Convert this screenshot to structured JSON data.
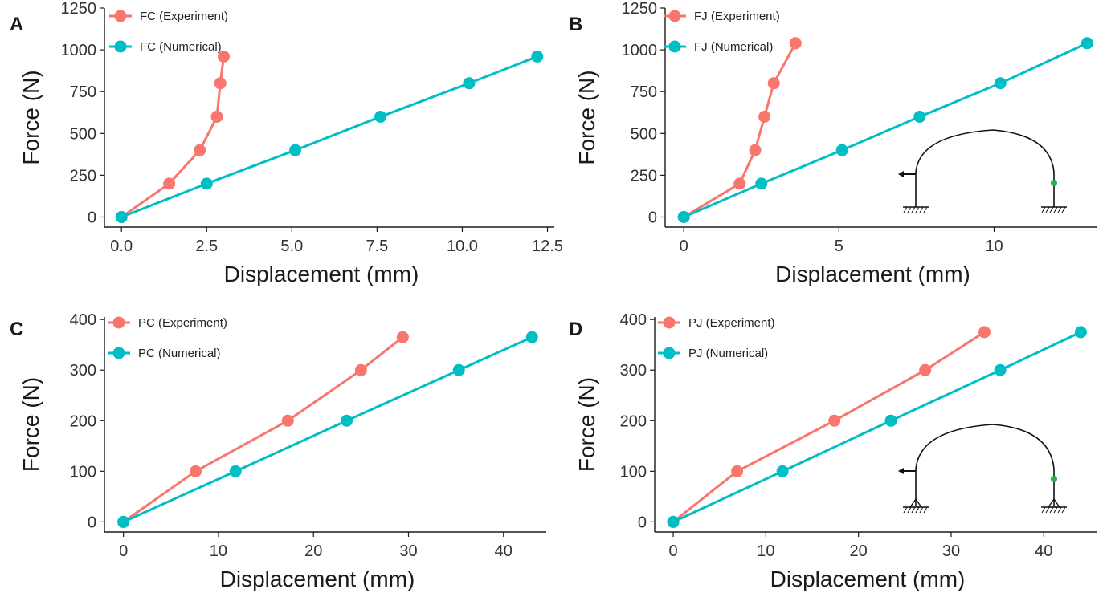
{
  "colors": {
    "experiment": "#F8766D",
    "numerical": "#00BFC4",
    "axis": "#1a1a1a",
    "joint_marker": "#22B14C"
  },
  "chart_data": [
    {
      "panel": "A",
      "type": "line",
      "xlabel": "Displacement (mm)",
      "ylabel": "Force (N)",
      "xlim": [
        -0.5,
        12.7
      ],
      "ylim": [
        -60,
        1250
      ],
      "xticks": [
        0.0,
        2.5,
        5.0,
        7.5,
        10.0,
        12.5
      ],
      "xtick_labels": [
        "0.0",
        "2.5",
        "5.0",
        "7.5",
        "10.0",
        "12.5"
      ],
      "yticks": [
        0,
        250,
        500,
        750,
        1000,
        1250
      ],
      "ytick_labels": [
        "0",
        "250",
        "500",
        "750",
        "1000",
        "1250"
      ],
      "legend": "top-left",
      "grid": false,
      "inset": "none",
      "series": [
        {
          "name": "FC (Experiment)",
          "color": "#F8766D",
          "x": [
            0.0,
            1.4,
            2.3,
            2.8,
            2.9,
            3.0
          ],
          "y": [
            0,
            200,
            400,
            600,
            800,
            960
          ]
        },
        {
          "name": "FC (Numerical)",
          "color": "#00BFC4",
          "x": [
            0.0,
            2.5,
            5.1,
            7.6,
            10.2,
            12.2
          ],
          "y": [
            0,
            200,
            400,
            600,
            800,
            960
          ]
        }
      ]
    },
    {
      "panel": "B",
      "type": "line",
      "xlabel": "Displacement (mm)",
      "ylabel": "Force (N)",
      "xlim": [
        -0.6,
        13.3
      ],
      "ylim": [
        -60,
        1250
      ],
      "xticks": [
        0,
        5,
        10
      ],
      "xtick_labels": [
        "0",
        "5",
        "10"
      ],
      "yticks": [
        0,
        250,
        500,
        750,
        1000,
        1250
      ],
      "ytick_labels": [
        "0",
        "250",
        "500",
        "750",
        "1000",
        "1250"
      ],
      "legend": "top-left",
      "grid": false,
      "inset": "fixed supports",
      "series": [
        {
          "name": "FJ (Experiment)",
          "color": "#F8766D",
          "x": [
            0.0,
            1.8,
            2.3,
            2.6,
            2.9,
            3.6
          ],
          "y": [
            0,
            200,
            400,
            600,
            800,
            1040
          ]
        },
        {
          "name": "FJ (Numerical)",
          "color": "#00BFC4",
          "x": [
            0.0,
            2.5,
            5.1,
            7.6,
            10.2,
            13.0
          ],
          "y": [
            0,
            200,
            400,
            600,
            800,
            1040
          ]
        }
      ]
    },
    {
      "panel": "C",
      "type": "line",
      "xlabel": "Displacement (mm)",
      "ylabel": "Force (N)",
      "xlim": [
        -2,
        44.5
      ],
      "ylim": [
        -20,
        405
      ],
      "xticks": [
        0,
        10,
        20,
        30,
        40
      ],
      "xtick_labels": [
        "0",
        "10",
        "20",
        "30",
        "40"
      ],
      "yticks": [
        0,
        100,
        200,
        300,
        400
      ],
      "ytick_labels": [
        "0",
        "100",
        "200",
        "300",
        "400"
      ],
      "legend": "top-left",
      "grid": false,
      "inset": "none",
      "series": [
        {
          "name": "PC (Experiment)",
          "color": "#F8766D",
          "x": [
            0.0,
            7.6,
            17.3,
            25.0,
            29.4
          ],
          "y": [
            0,
            100,
            200,
            300,
            365
          ]
        },
        {
          "name": "PC (Numerical)",
          "color": "#00BFC4",
          "x": [
            0.0,
            11.8,
            23.5,
            35.3,
            43.0
          ],
          "y": [
            0,
            100,
            200,
            300,
            365
          ]
        }
      ]
    },
    {
      "panel": "D",
      "type": "line",
      "xlabel": "Displacement (mm)",
      "ylabel": "Force (N)",
      "xlim": [
        -2,
        45.7
      ],
      "ylim": [
        -20,
        405
      ],
      "xticks": [
        0,
        10,
        20,
        30,
        40
      ],
      "xtick_labels": [
        "0",
        "10",
        "20",
        "30",
        "40"
      ],
      "yticks": [
        0,
        100,
        200,
        300,
        400
      ],
      "ytick_labels": [
        "0",
        "100",
        "200",
        "300",
        "400"
      ],
      "legend": "top-left",
      "grid": false,
      "inset": "pinned supports",
      "series": [
        {
          "name": "PJ (Experiment)",
          "color": "#F8766D",
          "x": [
            0.0,
            6.9,
            17.4,
            27.2,
            33.6
          ],
          "y": [
            0,
            100,
            200,
            300,
            375
          ]
        },
        {
          "name": "PJ (Numerical)",
          "color": "#00BFC4",
          "x": [
            0.0,
            11.8,
            23.5,
            35.3,
            44.0
          ],
          "y": [
            0,
            100,
            200,
            300,
            375
          ]
        }
      ]
    }
  ]
}
